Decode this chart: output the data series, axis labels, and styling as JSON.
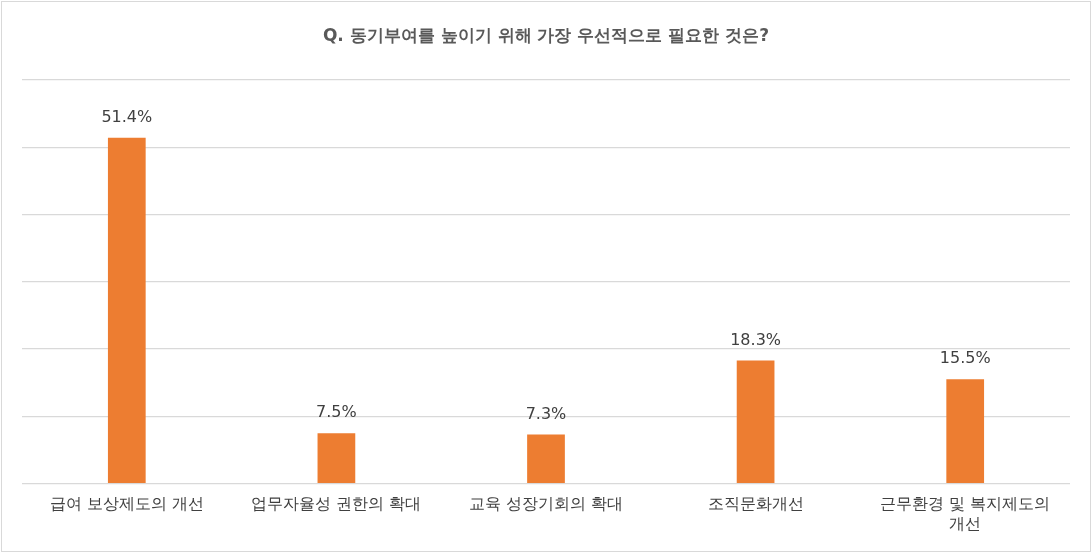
{
  "chart_data": {
    "type": "bar",
    "title": "Q. 동기부여를 높이기 위해 가장 우선적으로 필요한 것은?",
    "categories": [
      "급여 보상제도의 개선",
      "업무자율성 권한의 확대",
      "교육 성장기회의 확대",
      "조직문화개선",
      "근무환경 및 복지제도의 개선"
    ],
    "values": [
      51.4,
      7.5,
      7.3,
      18.3,
      15.5
    ],
    "value_labels": [
      "51.4%",
      "7.5%",
      "7.3%",
      "18.3%",
      "15.5%"
    ],
    "color": "#ed7d31",
    "ylim": [
      0,
      60
    ],
    "yticks": [
      0,
      10,
      20,
      30,
      40,
      50,
      60
    ],
    "grid": "y",
    "legend": false,
    "tick_labels": "x"
  }
}
